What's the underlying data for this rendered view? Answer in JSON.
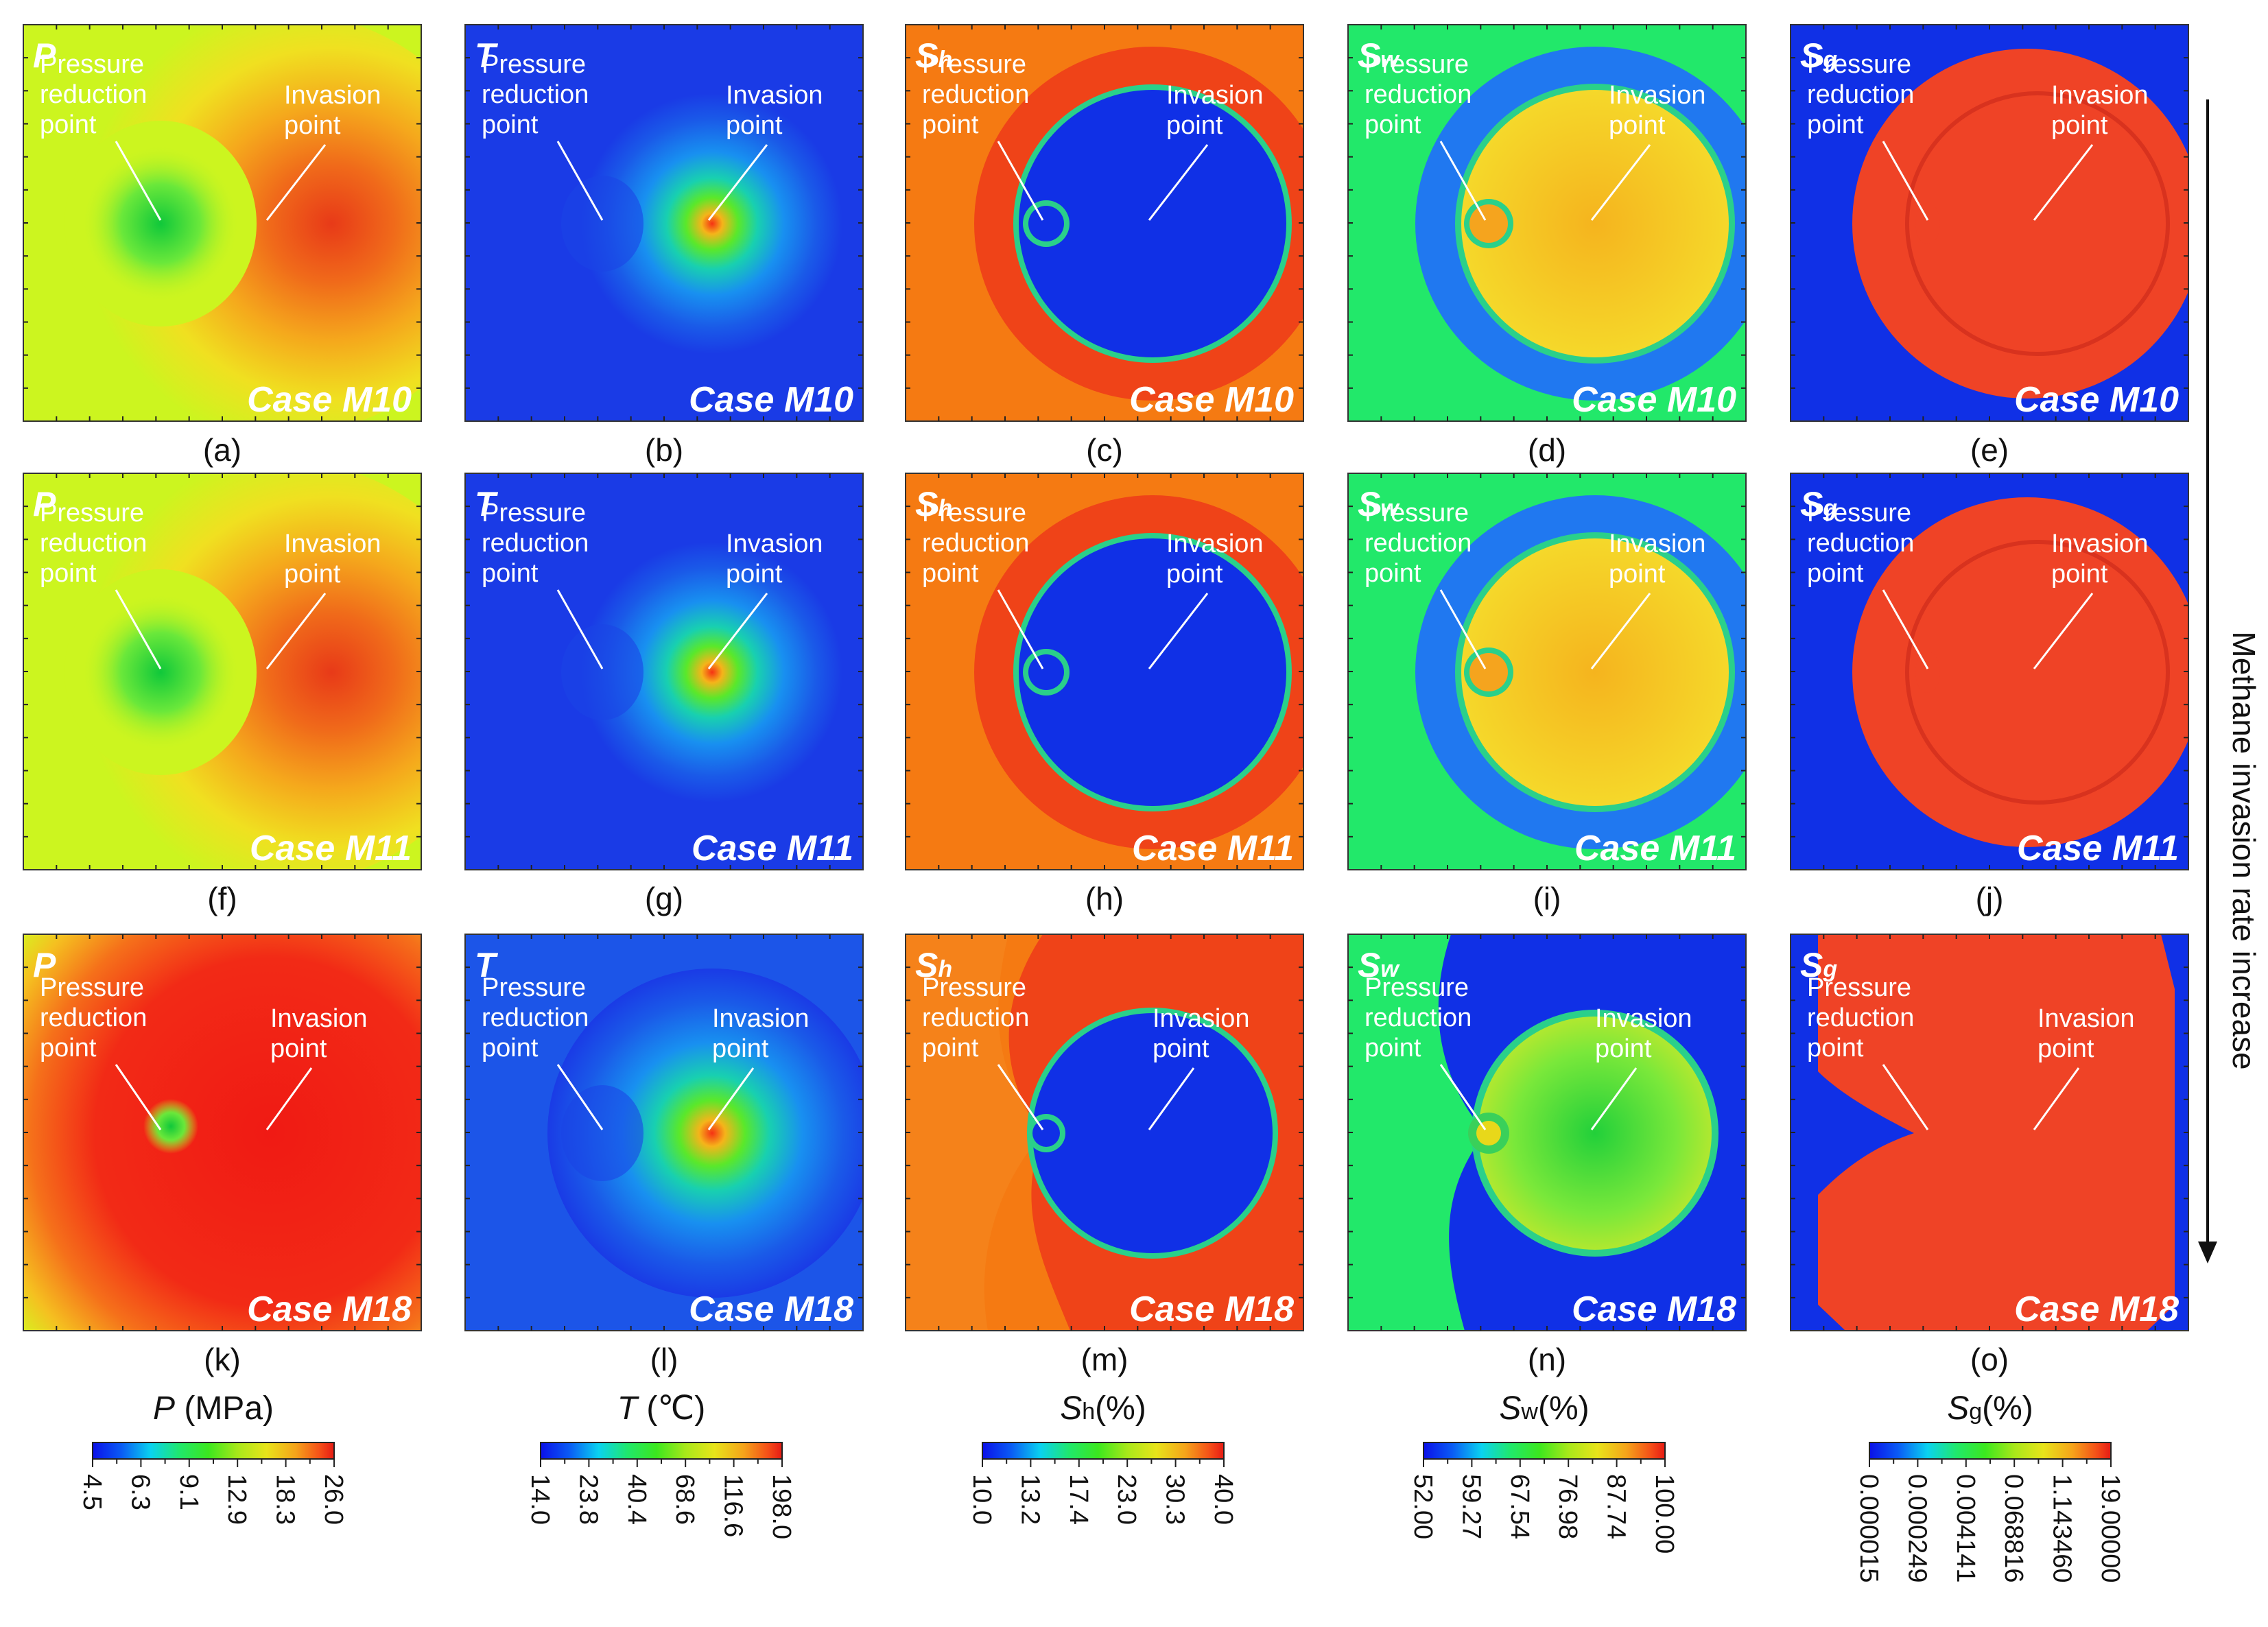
{
  "annotations": {
    "pressure_reduction": [
      "Pressure",
      "reduction",
      "point"
    ],
    "invasion": [
      "Invasion",
      "point"
    ]
  },
  "variables": [
    {
      "main": "P",
      "sub": ""
    },
    {
      "main": "T",
      "sub": ""
    },
    {
      "main": "S",
      "sub": "h"
    },
    {
      "main": "S",
      "sub": "w"
    },
    {
      "main": "S",
      "sub": "g"
    }
  ],
  "rows": [
    {
      "case": "Case M10",
      "captions": [
        "(a)",
        "(b)",
        "(c)",
        "(d)",
        "(e)"
      ]
    },
    {
      "case": "Case M11",
      "captions": [
        "(f)",
        "(g)",
        "(h)",
        "(i)",
        "(j)"
      ]
    },
    {
      "case": "Case M18",
      "captions": [
        "(k)",
        "(l)",
        "(m)",
        "(n)",
        "(o)"
      ]
    }
  ],
  "colorbars": [
    {
      "title_main": "P",
      "title_sub": "",
      "title_unit": " (MPa)",
      "ticks": [
        "4.5",
        "6.3",
        "9.1",
        "12.9",
        "18.3",
        "26.0"
      ]
    },
    {
      "title_main": "T",
      "title_sub": "",
      "title_unit": " (℃)",
      "ticks": [
        "14.0",
        "23.8",
        "40.4",
        "68.6",
        "116.6",
        "198.0"
      ]
    },
    {
      "title_main": "S",
      "title_sub": "h",
      "title_unit": "(%)",
      "ticks": [
        "10.0",
        "13.2",
        "17.4",
        "23.0",
        "30.3",
        "40.0"
      ]
    },
    {
      "title_main": "S",
      "title_sub": "w",
      "title_unit": "(%)",
      "ticks": [
        "52.00",
        "59.27",
        "67.54",
        "76.98",
        "87.74",
        "100.00"
      ]
    },
    {
      "title_main": "S",
      "title_sub": "g",
      "title_unit": "(%)",
      "ticks": [
        "0.000015",
        "0.000249",
        "0.004141",
        "0.068816",
        "1.143460",
        "19.00000"
      ]
    }
  ],
  "side_label": "Methane invasion rate increase",
  "colors": {
    "p_bg": "#ccf51f",
    "p_center": "#f05a18",
    "t_bg": "#1a3be6",
    "t_center": "#f55a14",
    "sh_bg": "#f57a12",
    "sh_hole": "#1030e6",
    "sh_ring": "#ef4318",
    "sw_bg": "#22e86a",
    "sw_ring": "#2078f0",
    "sw_core": "#f5c322",
    "sg_bg": "#1030e6",
    "sg_fill": "#ef4326",
    "jet_stops": [
      "#0b10e8",
      "#0a5cf5",
      "#0ad2f0",
      "#20e86c",
      "#3ce81e",
      "#a8e81a",
      "#e8e41a",
      "#f5a41a",
      "#f55018",
      "#e61a14"
    ]
  }
}
